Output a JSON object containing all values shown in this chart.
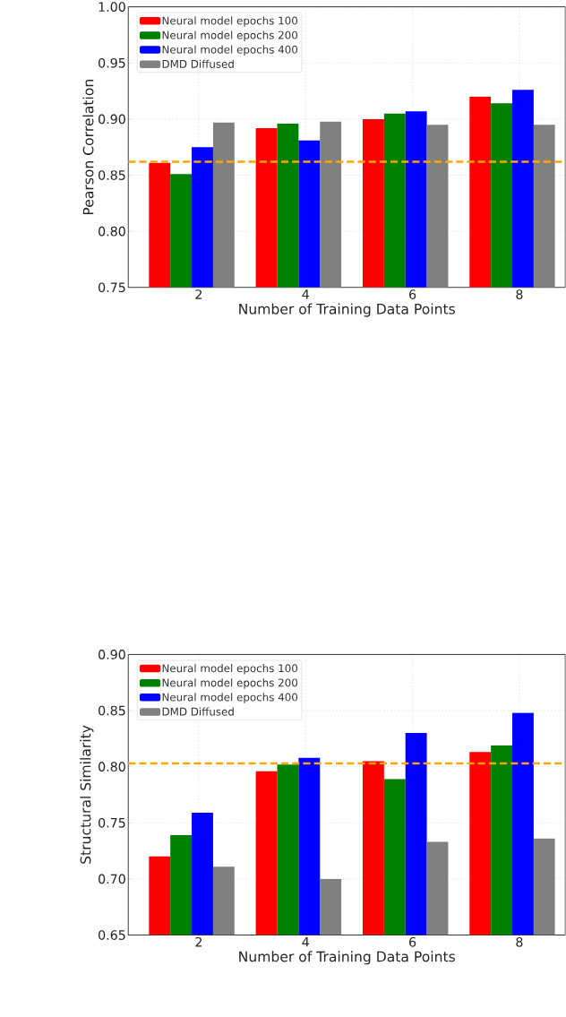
{
  "chart_data": [
    {
      "type": "bar",
      "xlabel": "Number of Training Data Points",
      "ylabel": "Pearson Correlation",
      "categories": [
        "2",
        "4",
        "6",
        "8"
      ],
      "series": [
        {
          "name": "Neural model epochs 100",
          "color": "#ff0000",
          "values": [
            0.861,
            0.892,
            0.9,
            0.92
          ]
        },
        {
          "name": "Neural model epochs 200",
          "color": "#008000",
          "values": [
            0.851,
            0.896,
            0.905,
            0.914
          ]
        },
        {
          "name": "Neural model epochs 400",
          "color": "#0000ff",
          "values": [
            0.875,
            0.881,
            0.907,
            0.926
          ]
        },
        {
          "name": "DMD Diffused",
          "color": "#808080",
          "values": [
            0.897,
            0.898,
            0.895,
            0.895
          ]
        }
      ],
      "ylim": [
        0.75,
        1.0
      ],
      "yticks": [
        {
          "value": 0.75,
          "label": "0.75"
        },
        {
          "value": 0.8,
          "label": "0.80"
        },
        {
          "value": 0.85,
          "label": "0.85"
        },
        {
          "value": 0.9,
          "label": "0.90"
        },
        {
          "value": 0.95,
          "label": "0.95"
        },
        {
          "value": 1.0,
          "label": "1.00"
        }
      ],
      "grid": true,
      "legend": "top left",
      "ref_lines": [
        {
          "axis": "y",
          "value": 0.862,
          "color": "#ffa500",
          "line_style": "dashed"
        }
      ]
    },
    {
      "type": "bar",
      "xlabel": "Number of Training Data Points",
      "ylabel": "Structural Similarity",
      "categories": [
        "2",
        "4",
        "6",
        "8"
      ],
      "series": [
        {
          "name": "Neural model epochs 100",
          "color": "#ff0000",
          "values": [
            0.72,
            0.796,
            0.805,
            0.813
          ]
        },
        {
          "name": "Neural model epochs 200",
          "color": "#008000",
          "values": [
            0.739,
            0.802,
            0.789,
            0.819
          ]
        },
        {
          "name": "Neural model epochs 400",
          "color": "#0000ff",
          "values": [
            0.759,
            0.808,
            0.83,
            0.848
          ]
        },
        {
          "name": "DMD Diffused",
          "color": "#808080",
          "values": [
            0.711,
            0.7,
            0.733,
            0.736
          ]
        }
      ],
      "ylim": [
        0.65,
        0.9
      ],
      "yticks": [
        {
          "value": 0.65,
          "label": "0.65"
        },
        {
          "value": 0.7,
          "label": "0.70"
        },
        {
          "value": 0.75,
          "label": "0.75"
        },
        {
          "value": 0.8,
          "label": "0.80"
        },
        {
          "value": 0.85,
          "label": "0.85"
        },
        {
          "value": 0.9,
          "label": "0.90"
        }
      ],
      "grid": true,
      "legend": "top left",
      "ref_lines": [
        {
          "axis": "y",
          "value": 0.803,
          "color": "#ffa500",
          "line_style": "dashed"
        }
      ]
    }
  ]
}
